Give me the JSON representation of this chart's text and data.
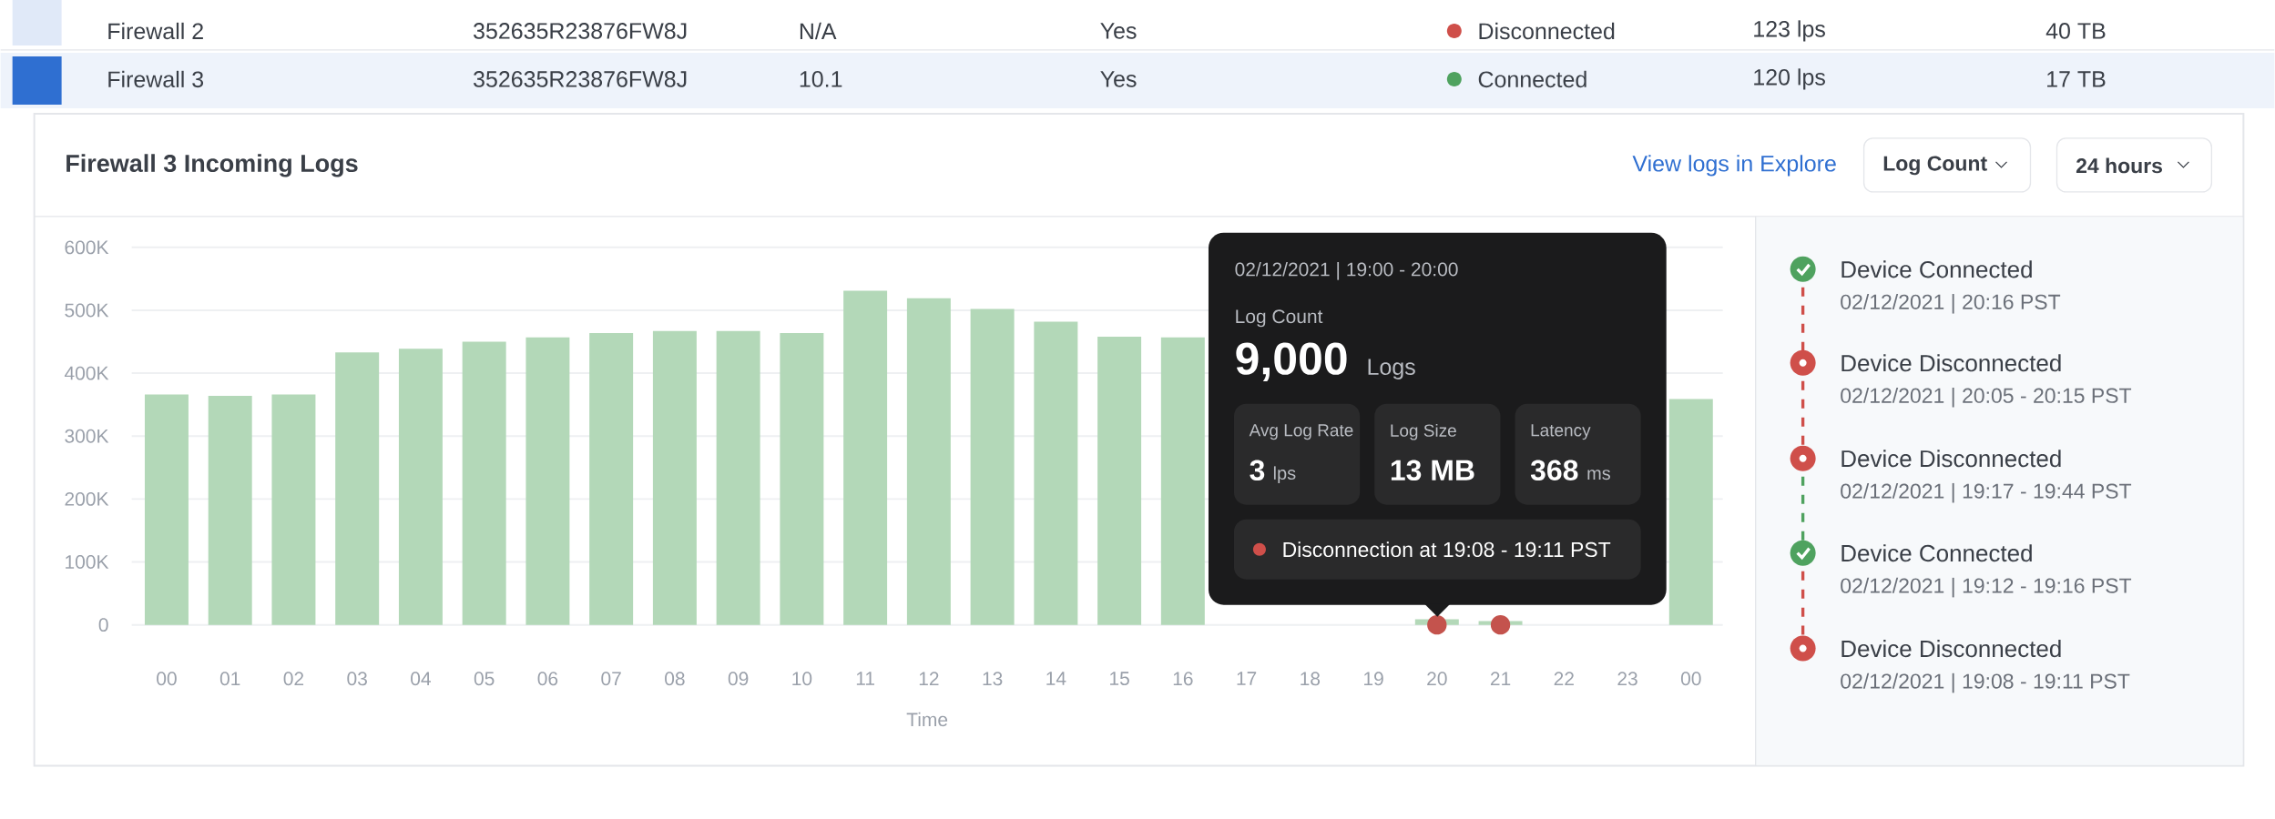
{
  "chart_data": {
    "type": "bar",
    "title": "Firewall 3 Incoming Logs",
    "xlabel": "Time",
    "categories": [
      "00",
      "01",
      "02",
      "03",
      "04",
      "05",
      "06",
      "07",
      "08",
      "09",
      "10",
      "11",
      "12",
      "13",
      "14",
      "15",
      "16",
      "17",
      "18",
      "19",
      "20",
      "21",
      "22",
      "23",
      "00"
    ],
    "series": [
      {
        "color": "#b3d8b8",
        "values": [
          366000,
          364000,
          366000,
          433000,
          439000,
          450000,
          457000,
          464000,
          467000,
          467000,
          464000,
          531000,
          519000,
          502000,
          482000,
          458000,
          457000,
          null,
          null,
          null,
          9000,
          6000,
          null,
          null,
          359000
        ]
      },
      {
        "type": "scatter",
        "color": "#c4534d",
        "x": [
          "20",
          "21"
        ],
        "values": [
          0,
          0
        ],
        "marker": "circle"
      }
    ],
    "ylim": [
      0,
      600000
    ],
    "yticks": [
      {
        "value": 0,
        "label": "0"
      },
      {
        "value": 100000,
        "label": "100K"
      },
      {
        "value": 200000,
        "label": "200K"
      },
      {
        "value": 300000,
        "label": "300K"
      },
      {
        "value": 400000,
        "label": "400K"
      },
      {
        "value": 500000,
        "label": "500K"
      },
      {
        "value": 600000,
        "label": "600K"
      }
    ],
    "grid": "y",
    "annotations": [
      "Firewall 2",
      "352635R23876FW8J",
      "N/A",
      "Yes",
      "Disconnected",
      "123 lps",
      "40 TB",
      "Firewall 3",
      "352635R23876FW8J",
      "10.1",
      "Yes",
      "Connected",
      "120 lps",
      "17 TB",
      "View logs in Explore",
      "Log Count",
      "24 hours",
      "02/12/2021 | 19:00 - 20:00",
      "Log Count",
      "9,000",
      "Logs",
      "Avg Log Rate",
      "3",
      "lps",
      "Log Size",
      "13 MB",
      "Latency",
      "368",
      "ms",
      "Disconnection at 19:08 - 19:11 PST",
      "Device Connected",
      "02/12/2021 | 20:16 PST",
      "Device Disconnected",
      "02/12/2021 | 20:05 - 20:15 PST",
      "Device Disconnected",
      "02/12/2021 | 19:17 - 19:44 PST",
      "Device Connected",
      "02/12/2021 | 19:12 - 19:16 PST",
      "Device Disconnected",
      "02/12/2021 | 19:08 - 19:11 PST"
    ]
  }
}
